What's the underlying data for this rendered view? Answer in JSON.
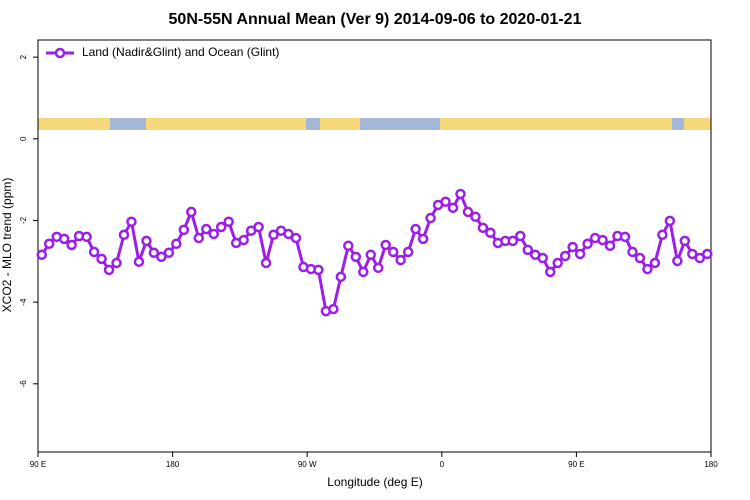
{
  "chart_data": {
    "type": "line",
    "title": "50N-55N Annual Mean (Ver 9)   2014-09-06 to 2020-01-21",
    "x_label": "Longitude (deg E)",
    "y_label": "XCO2 - MLO trend (ppm)",
    "xlim": [
      90,
      540
    ],
    "ylim": [
      -7.67,
      2.42
    ],
    "xticks": [
      {
        "value": 90,
        "label": "90 E"
      },
      180,
      {
        "value": 270,
        "label": "90 W"
      },
      {
        "value": 360,
        "label": "0"
      },
      {
        "value": 450,
        "label": "90 E"
      },
      {
        "value": 540,
        "label": "180"
      }
    ],
    "yticks": [
      2,
      0,
      -2,
      -4,
      -6
    ],
    "legend_position": "top-left",
    "x": [
      92.5,
      97.5,
      102.5,
      107.5,
      112.5,
      117.5,
      122.5,
      127.5,
      132.5,
      137.5,
      142.5,
      147.5,
      152.5,
      157.5,
      162.5,
      167.5,
      172.5,
      177.5,
      182.5,
      187.5,
      192.5,
      197.5,
      202.5,
      207.5,
      212.5,
      217.5,
      222.5,
      227.5,
      232.5,
      237.5,
      242.5,
      247.5,
      252.5,
      257.5,
      262.5,
      267.5,
      272.5,
      277.5,
      282.5,
      287.5,
      292.5,
      297.5,
      302.5,
      307.5,
      312.5,
      317.5,
      322.5,
      327.5,
      332.5,
      337.5,
      342.5,
      347.5,
      352.5,
      357.5,
      362.5,
      367.5,
      372.5,
      377.5,
      382.5,
      387.5,
      392.5,
      397.5,
      402.5,
      407.5,
      412.5,
      417.5,
      422.5,
      427.5,
      432.5,
      437.5,
      442.5,
      447.5,
      452.5,
      457.5,
      462.5,
      467.5,
      472.5,
      477.5,
      482.5,
      487.5,
      492.5,
      497.5,
      502.5,
      507.5,
      512.5,
      517.5,
      522.5,
      527.5,
      532.5,
      537.5
    ],
    "series": [
      {
        "name": "Land (Nadir&Glint) and Ocean (Glint)",
        "color": "#9b1fe8",
        "values": [
          -2.84,
          -2.57,
          -2.4,
          -2.45,
          -2.6,
          -2.38,
          -2.4,
          -2.77,
          -2.94,
          -3.21,
          -3.04,
          -2.35,
          -2.03,
          -3.01,
          -2.5,
          -2.79,
          -2.89,
          -2.79,
          -2.57,
          -2.23,
          -1.79,
          -2.43,
          -2.21,
          -2.33,
          -2.16,
          -2.03,
          -2.55,
          -2.48,
          -2.25,
          -2.16,
          -3.04,
          -2.35,
          -2.25,
          -2.33,
          -2.43,
          -3.14,
          -3.19,
          -3.21,
          -4.22,
          -4.17,
          -3.38,
          -2.62,
          -2.89,
          -3.26,
          -2.84,
          -3.16,
          -2.6,
          -2.77,
          -2.97,
          -2.77,
          -2.21,
          -2.45,
          -1.94,
          -1.62,
          -1.54,
          -1.69,
          -1.35,
          -1.79,
          -1.91,
          -2.18,
          -2.3,
          -2.55,
          -2.5,
          -2.5,
          -2.38,
          -2.72,
          -2.84,
          -2.92,
          -3.26,
          -3.04,
          -2.87,
          -2.65,
          -2.82,
          -2.57,
          -2.43,
          -2.48,
          -2.62,
          -2.38,
          -2.4,
          -2.77,
          -2.92,
          -3.19,
          -3.04,
          -2.35,
          -2.01,
          -2.99,
          -2.5,
          -2.82,
          -2.92,
          -2.82
        ]
      }
    ]
  }
}
